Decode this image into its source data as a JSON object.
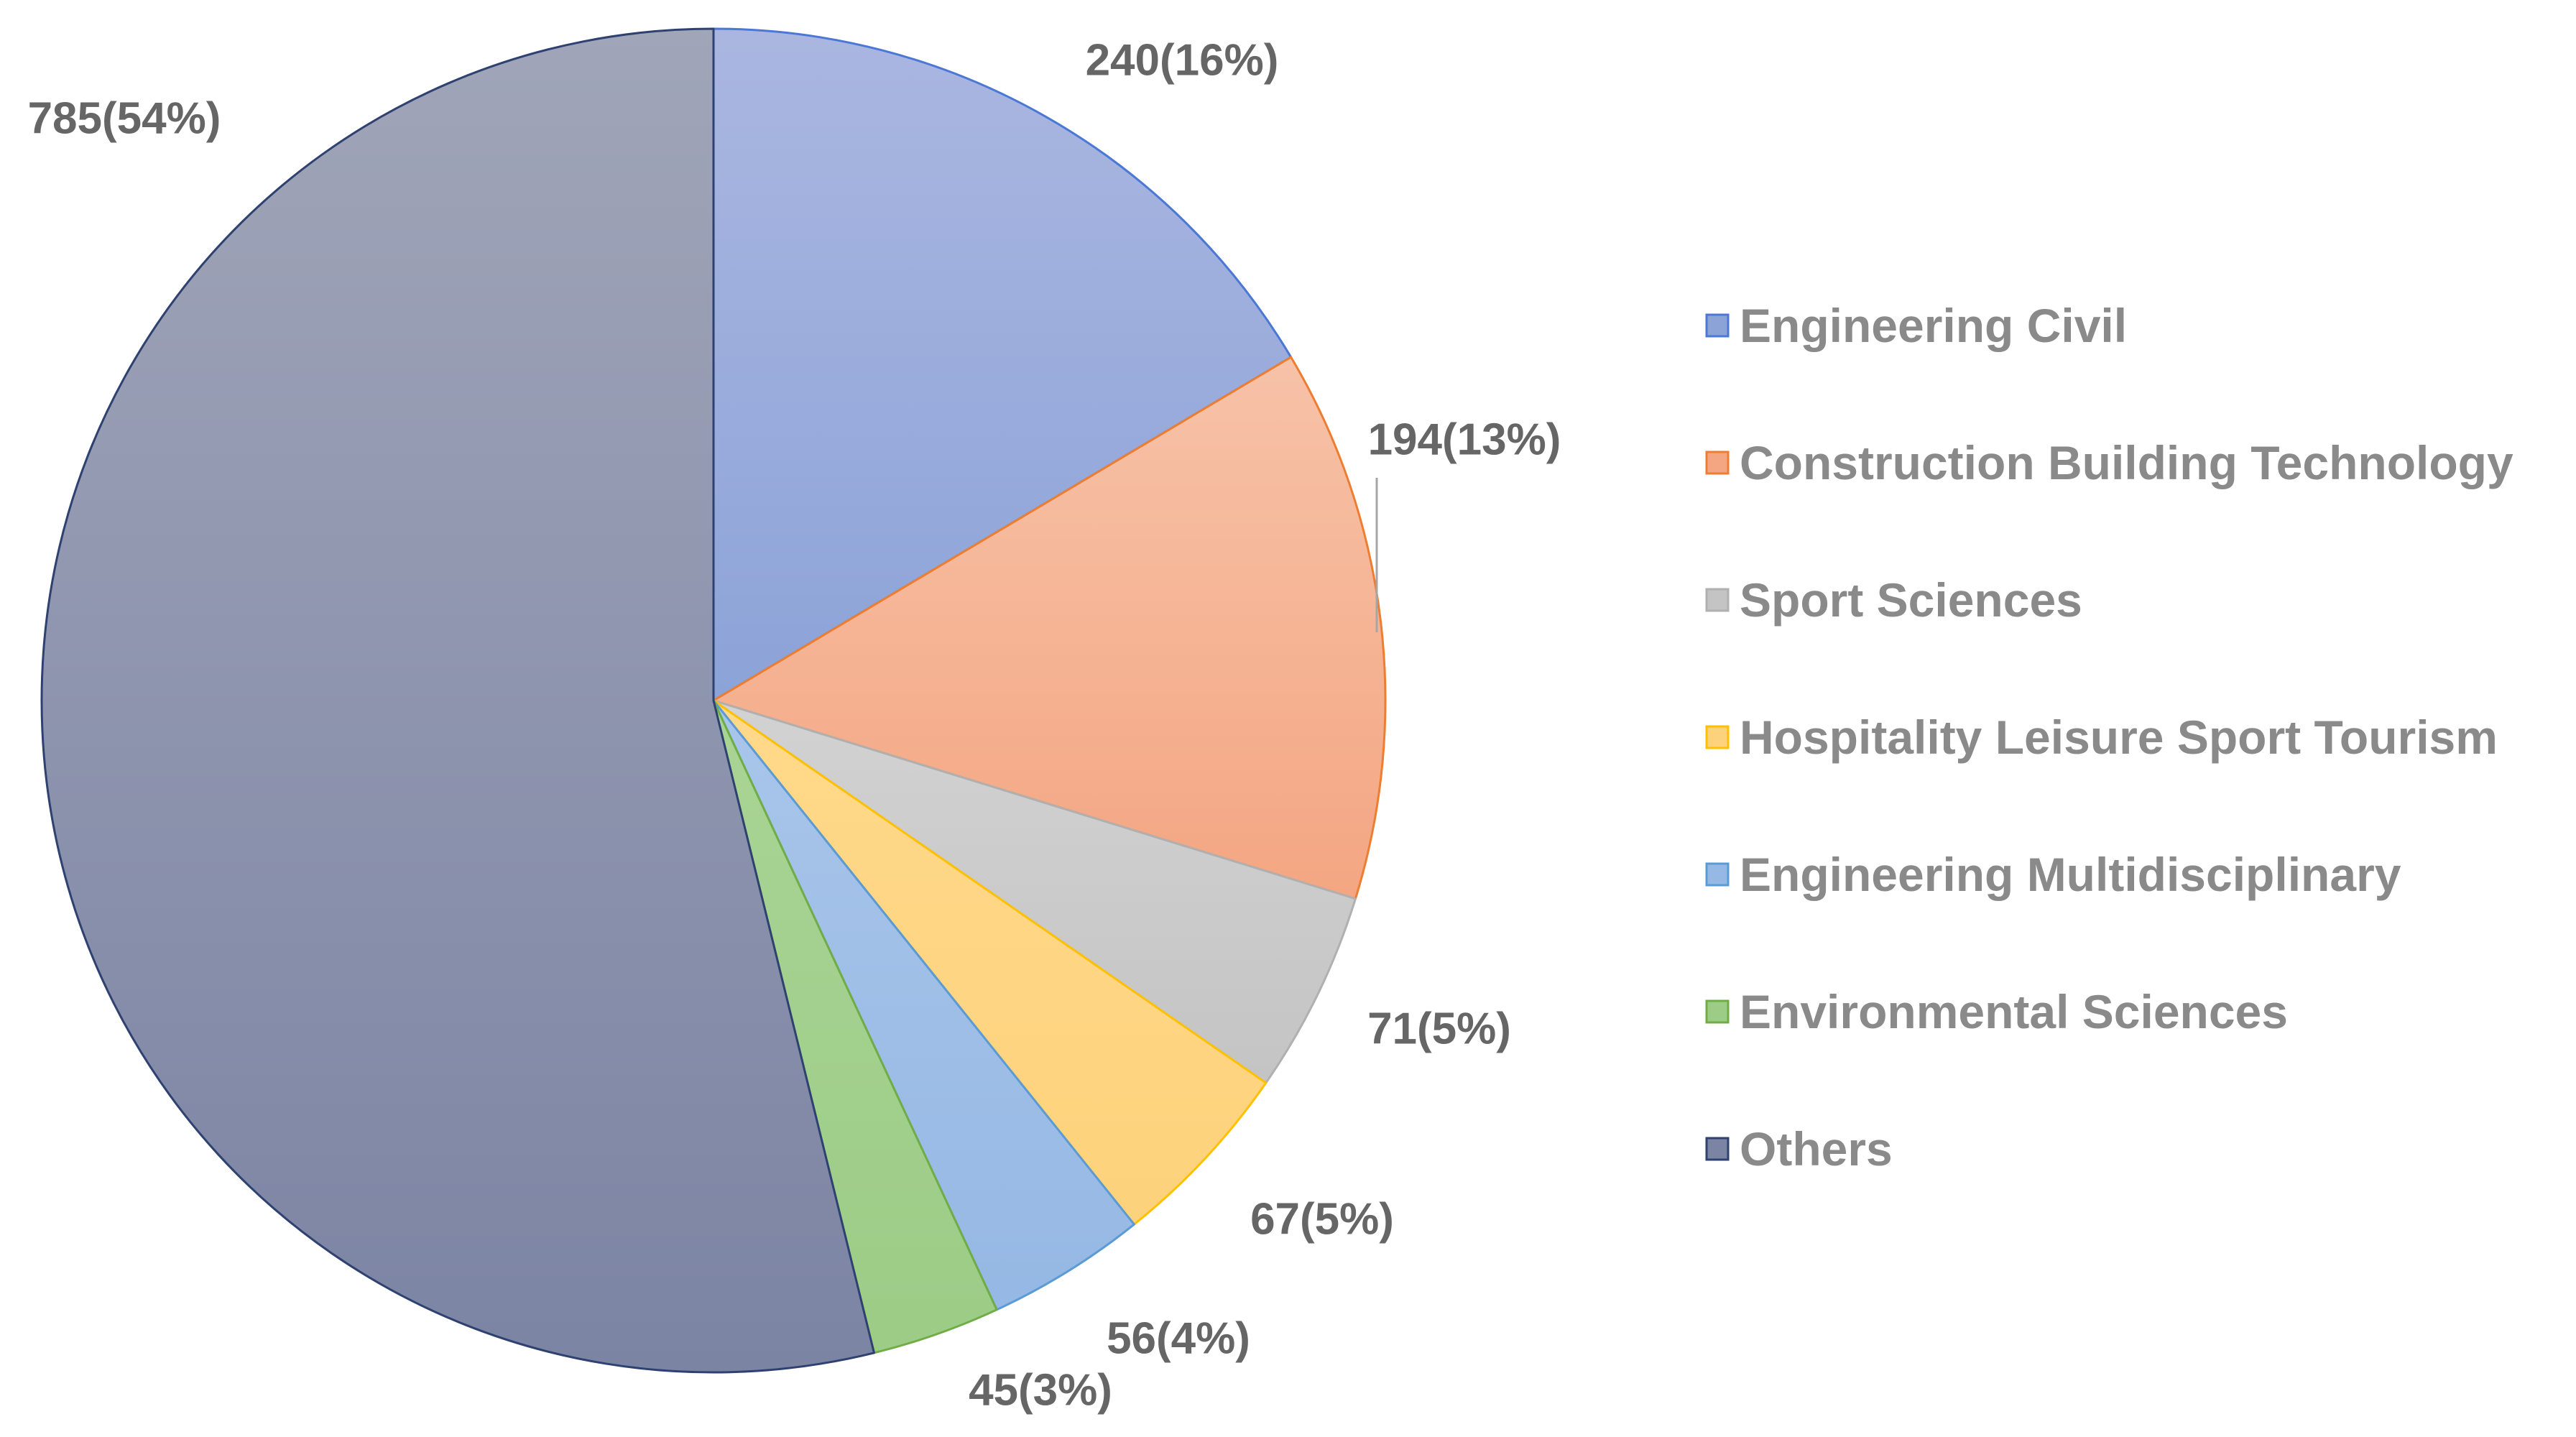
{
  "chart_data": {
    "type": "pie",
    "title": "",
    "start_angle_deg": 0,
    "direction": "clockwise",
    "label_format": "{value}({pct})",
    "slices": [
      {
        "name": "Engineering Civil",
        "value": 240,
        "pct": "16%",
        "fill_top": "#aab6e0",
        "fill_bottom": "#8ca3d8",
        "stroke": "#4a78d4",
        "label": "240(16%)"
      },
      {
        "name": "Construction Building Technology",
        "value": 194,
        "pct": "13%",
        "fill_top": "#f7c2a8",
        "fill_bottom": "#f4a682",
        "stroke": "#ed7d31",
        "label": "194(13%)"
      },
      {
        "name": "Sport Sciences",
        "value": 71,
        "pct": "5%",
        "fill_top": "#d2d2d2",
        "fill_bottom": "#c4c4c4",
        "stroke": "#b0b0b0",
        "label": "71(5%)"
      },
      {
        "name": "Hospitality Leisure Sport Tourism",
        "value": 67,
        "pct": "5%",
        "fill_top": "#ffd98a",
        "fill_bottom": "#fdd27c",
        "stroke": "#ffc000",
        "label": "67(5%)"
      },
      {
        "name": "Engineering Multidisciplinary",
        "value": 56,
        "pct": "4%",
        "fill_top": "#a9c5ea",
        "fill_bottom": "#95b8e4",
        "stroke": "#5b9bd5",
        "label": "56(4%)"
      },
      {
        "name": "Environmental Sciences",
        "value": 45,
        "pct": "3%",
        "fill_top": "#a9d495",
        "fill_bottom": "#9ccc86",
        "stroke": "#70ad47",
        "label": "45(3%)"
      },
      {
        "name": "Others",
        "value": 785,
        "pct": "54%",
        "fill_top": "#a0a5b8",
        "fill_bottom": "#7c84a4",
        "stroke": "#2e4170",
        "label": "785(54%)"
      }
    ],
    "legend": {
      "position": "right",
      "entries": [
        "Engineering Civil",
        "Construction Building Technology",
        "Sport Sciences",
        "Hospitality Leisure Sport Tourism",
        "Engineering Multidisciplinary",
        "Environmental Sciences",
        "Others"
      ]
    }
  }
}
